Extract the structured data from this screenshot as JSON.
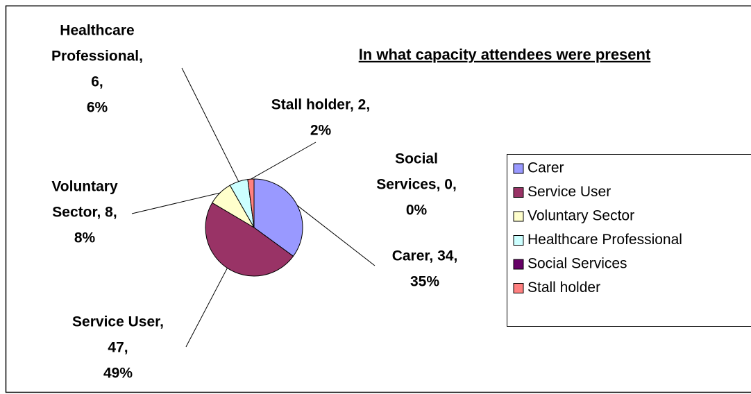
{
  "chart_data": {
    "type": "pie",
    "title": "In what capacity attendees were present",
    "categories": [
      "Carer",
      "Service User",
      "Voluntary Sector",
      "Healthcare Professional",
      "Social Services",
      "Stall holder"
    ],
    "values": [
      34,
      47,
      8,
      6,
      0,
      2
    ],
    "value_labels": [
      [
        "Carer, 34,",
        "35%"
      ],
      [
        "Service User,",
        "47,",
        "49%"
      ],
      [
        "Voluntary",
        "Sector, 8,",
        "8%"
      ],
      [
        "Healthcare",
        "Professional,",
        "6,",
        "6%"
      ],
      [
        "Social",
        "Services, 0,",
        "0%"
      ],
      [
        "Stall holder, 2,",
        "2%"
      ]
    ],
    "colors": [
      "#9999ff",
      "#993366",
      "#ffffcc",
      "#ccffff",
      "#660066",
      "#ff8080"
    ],
    "legend": "right"
  }
}
